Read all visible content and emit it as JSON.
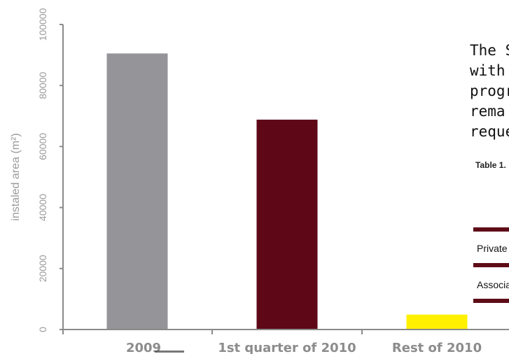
{
  "chart_data": {
    "type": "bar",
    "categories": [
      "2009",
      "1st quarter of 2010",
      "Rest of 2010"
    ],
    "values": [
      90500,
      68800,
      4900
    ],
    "colors": [
      "#949499",
      "#5e0717",
      "#fff000"
    ],
    "ylabel": "instaled area (m²)",
    "ylim": [
      0,
      100000
    ],
    "yticks": [
      "0",
      "20000",
      "40000",
      "60000",
      "80000",
      "100000"
    ],
    "grid": false
  },
  "overlay": {
    "lines": [
      "The S",
      "with",
      "progr",
      "rema",
      "reque"
    ],
    "table_caption": "Table 1.",
    "rows": [
      "Private",
      "Associa"
    ]
  }
}
